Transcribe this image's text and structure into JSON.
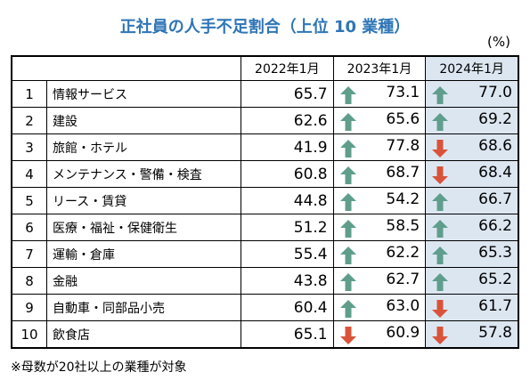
{
  "title": "正社員の人手不足割合（上位 10 業種）",
  "unit": "(%)",
  "table": {
    "header": [
      "2022年1月",
      "2023年1月",
      "2024年1月"
    ],
    "rows": [
      [
        "1",
        "情報サービス",
        "65.7",
        "73.1",
        "77.0"
      ],
      [
        "2",
        "建設",
        "62.6",
        "65.6",
        "69.2"
      ],
      [
        "3",
        "旅館・ホテル",
        "41.9",
        "77.8",
        "68.6"
      ],
      [
        "4",
        "メンテナンス・警備・検査",
        "60.8",
        "68.7",
        "68.4"
      ],
      [
        "5",
        "リース・賃貸",
        "44.8",
        "54.2",
        "66.7"
      ],
      [
        "6",
        "医療・福祉・保健衛生",
        "51.2",
        "58.5",
        "66.2"
      ],
      [
        "7",
        "運輸・倉庫",
        "55.4",
        "62.2",
        "65.3"
      ],
      [
        "8",
        "金融",
        "43.8",
        "62.7",
        "65.2"
      ],
      [
        "9",
        "自動車・同部品小売",
        "60.4",
        "63.0",
        "61.7"
      ],
      [
        "10",
        "飲食店",
        "65.1",
        "60.9",
        "57.8"
      ]
    ]
  },
  "footnote": "※母数が20社以上の業種が対象"
}
